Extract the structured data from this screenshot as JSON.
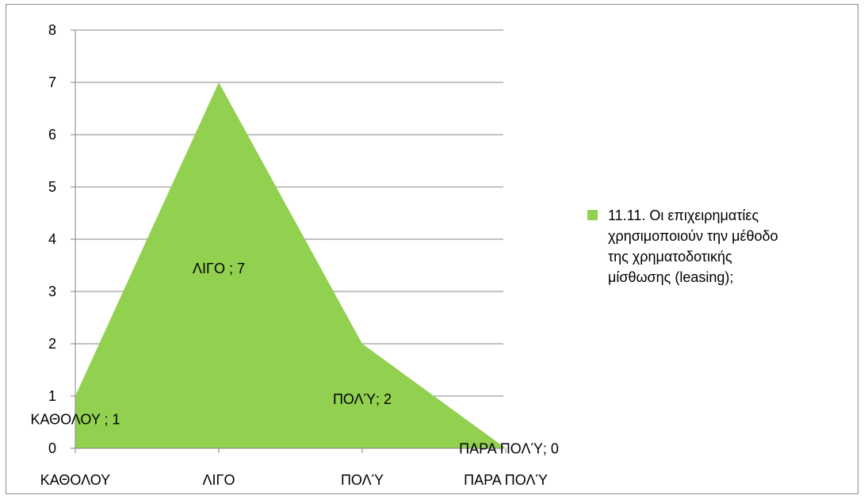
{
  "chart_data": {
    "type": "area",
    "categories": [
      "ΚΑΘΟΛΟΥ",
      "ΛΙΓΟ",
      "ΠΟΛΎ",
      "ΠΑΡΑ ΠΟΛΎ"
    ],
    "series": [
      {
        "name": "11.11. Οι επιχειρηματίες χρησιμοποιούν την μέθοδο της χρηματοδοτικής μίσθωσης (leasing);",
        "name_lines": [
          "11.11. Οι επιχειρηματίες",
          "χρησιμοποιούν την μέθοδο",
          "της χρηματοδοτικής",
          "μίσθωσης (leasing);"
        ],
        "values": [
          1,
          7,
          2,
          0
        ],
        "data_labels": [
          "ΚΑΘΟΛΟΥ ; 1",
          "ΛΙΓΟ ; 7",
          "ΠΟΛΎ; 2",
          "ΠΑΡΑ ΠΟΛΎ; 0"
        ],
        "color": "#92d050"
      }
    ],
    "ylim": [
      0,
      8
    ],
    "yticks": [
      0,
      1,
      2,
      3,
      4,
      5,
      6,
      7,
      8
    ],
    "grid": true,
    "legend": "right",
    "gridline_color": "#868686",
    "axis_color": "#868686"
  }
}
